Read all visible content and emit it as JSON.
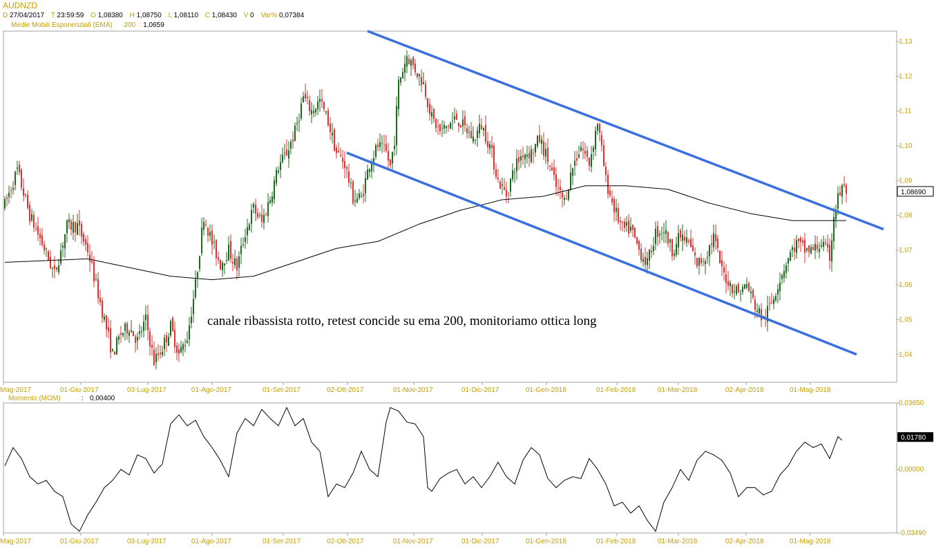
{
  "header": {
    "symbol": "AUDNZD",
    "date_key": "D",
    "date": "27/04/2017",
    "time_key": "T",
    "time": "23:59:59",
    "open_key": "O",
    "open": "1,08380",
    "high_key": "H",
    "high": "1,08750",
    "low_key": "L",
    "low": "1,08110",
    "close_key": "C",
    "close": "1,08430",
    "vol_key": "V",
    "vol": "0",
    "var_key": "Var%",
    "var": "0,07384",
    "ema_label": "Medie Mobili Esponenziali (EMA)",
    "ema_period": "200",
    "ema_sep": ":",
    "ema_value": "1,0659"
  },
  "colors": {
    "up": "#1b6b1b",
    "down": "#e03030",
    "channel": "#3a6fe0",
    "ema": "#000000",
    "axis_text": "#c8a000",
    "border": "#a0a0a0"
  },
  "annotation": "canale ribassista rotto, retest concide su ema 200, monitoriamo ottica long",
  "chart_data": [
    {
      "type": "candlestick",
      "title": "AUDNZD",
      "x_tick_labels": [
        "Mag-2017",
        "01-Giu-2017",
        "03-Lug-2017",
        "01-Ago-2017",
        "01-Set-2017",
        "02-Ott-2017",
        "01-Nov-2017",
        "01-Dic-2017",
        "01-Gen-2018",
        "01-Feb-2018",
        "01-Mar-2018",
        "02-Apr-2018",
        "01-Mag-2018"
      ],
      "y_tick_labels": [
        "1,04",
        "1,05",
        "1,06",
        "1,07",
        "1,08",
        "1,09",
        "1,10",
        "1,11",
        "1,12",
        "1,13"
      ],
      "ylim": [
        1.032,
        1.133
      ],
      "last_price_label": "1,08690",
      "last_price": 1.0869,
      "price_path": [
        [
          0,
          1.083
        ],
        [
          6,
          1.093
        ],
        [
          12,
          1.08
        ],
        [
          18,
          1.072
        ],
        [
          24,
          1.063
        ],
        [
          30,
          1.077
        ],
        [
          35,
          1.077
        ],
        [
          40,
          1.07
        ],
        [
          44,
          1.06
        ],
        [
          48,
          1.05
        ],
        [
          52,
          1.04
        ],
        [
          56,
          1.046
        ],
        [
          60,
          1.048
        ],
        [
          64,
          1.044
        ],
        [
          68,
          1.05
        ],
        [
          72,
          1.038
        ],
        [
          76,
          1.042
        ],
        [
          80,
          1.048
        ],
        [
          84,
          1.04
        ],
        [
          88,
          1.045
        ],
        [
          92,
          1.06
        ],
        [
          96,
          1.08
        ],
        [
          100,
          1.072
        ],
        [
          104,
          1.066
        ],
        [
          108,
          1.07
        ],
        [
          112,
          1.065
        ],
        [
          116,
          1.075
        ],
        [
          120,
          1.082
        ],
        [
          124,
          1.078
        ],
        [
          128,
          1.085
        ],
        [
          132,
          1.094
        ],
        [
          136,
          1.098
        ],
        [
          140,
          1.104
        ],
        [
          144,
          1.114
        ],
        [
          148,
          1.11
        ],
        [
          152,
          1.113
        ],
        [
          156,
          1.107
        ],
        [
          160,
          1.098
        ],
        [
          164,
          1.095
        ],
        [
          168,
          1.085
        ],
        [
          172,
          1.085
        ],
        [
          176,
          1.095
        ],
        [
          180,
          1.1
        ],
        [
          184,
          1.098
        ],
        [
          186,
          1.094
        ],
        [
          188,
          1.102
        ],
        [
          190,
          1.118
        ],
        [
          194,
          1.126
        ],
        [
          198,
          1.122
        ],
        [
          202,
          1.118
        ],
        [
          206,
          1.108
        ],
        [
          210,
          1.104
        ],
        [
          214,
          1.106
        ],
        [
          218,
          1.108
        ],
        [
          222,
          1.105
        ],
        [
          226,
          1.102
        ],
        [
          230,
          1.106
        ],
        [
          234,
          1.1
        ],
        [
          238,
          1.09
        ],
        [
          242,
          1.086
        ],
        [
          246,
          1.094
        ],
        [
          250,
          1.098
        ],
        [
          254,
          1.098
        ],
        [
          258,
          1.102
        ],
        [
          262,
          1.096
        ],
        [
          266,
          1.088
        ],
        [
          270,
          1.084
        ],
        [
          274,
          1.094
        ],
        [
          278,
          1.1
        ],
        [
          282,
          1.095
        ],
        [
          286,
          1.107
        ],
        [
          290,
          1.09
        ],
        [
          294,
          1.082
        ],
        [
          298,
          1.076
        ],
        [
          302,
          1.076
        ],
        [
          306,
          1.07
        ],
        [
          310,
          1.066
        ],
        [
          314,
          1.075
        ],
        [
          318,
          1.076
        ],
        [
          322,
          1.07
        ],
        [
          326,
          1.074
        ],
        [
          330,
          1.072
        ],
        [
          334,
          1.066
        ],
        [
          338,
          1.068
        ],
        [
          342,
          1.074
        ],
        [
          346,
          1.064
        ],
        [
          350,
          1.06
        ],
        [
          354,
          1.058
        ],
        [
          358,
          1.06
        ],
        [
          362,
          1.054
        ],
        [
          366,
          1.05
        ],
        [
          370,
          1.055
        ],
        [
          374,
          1.062
        ],
        [
          378,
          1.068
        ],
        [
          382,
          1.072
        ],
        [
          386,
          1.07
        ],
        [
          390,
          1.07
        ],
        [
          394,
          1.072
        ],
        [
          398,
          1.068
        ],
        [
          400,
          1.08
        ],
        [
          402,
          1.085
        ],
        [
          404,
          1.088
        ],
        [
          406,
          1.087
        ]
      ],
      "series": [
        {
          "name": "Medie Mobili Esponenziali (EMA) 200",
          "value": 1.0659,
          "points": [
            [
              0,
              1.0665
            ],
            [
              40,
              1.0675
            ],
            [
              80,
              1.0625
            ],
            [
              100,
              1.0615
            ],
            [
              120,
              1.0625
            ],
            [
              140,
              1.0665
            ],
            [
              160,
              1.0705
            ],
            [
              180,
              1.0725
            ],
            [
              200,
              1.0775
            ],
            [
              220,
              1.0815
            ],
            [
              240,
              1.0845
            ],
            [
              260,
              1.0855
            ],
            [
              280,
              1.0885
            ],
            [
              300,
              1.0885
            ],
            [
              320,
              1.0875
            ],
            [
              340,
              1.0835
            ],
            [
              360,
              1.0805
            ],
            [
              380,
              1.0785
            ],
            [
              400,
              1.0785
            ],
            [
              406,
              1.0785
            ]
          ]
        }
      ],
      "channel_lines": [
        [
          [
            175,
            1.133
          ],
          [
            424,
            1.076
          ]
        ],
        [
          [
            165,
            1.098
          ],
          [
            411,
            1.04
          ]
        ]
      ]
    },
    {
      "type": "line",
      "title": "Momento (MOM)",
      "title_value_sep": ":",
      "current_value_label": "0,00400",
      "y_tick_labels": [
        "0,03650",
        "0,00000",
        "-0,03490"
      ],
      "ylim": [
        -0.0349,
        0.0365
      ],
      "last_value_label": "0,01780",
      "last_value": 0.0178,
      "x_tick_labels": [
        "Mag-2017",
        "01-Giu-2017",
        "03-Lug-2017",
        "01-Ago-2017",
        "01-Set-2017",
        "02-Ott-2017",
        "01-Nov-2017",
        "01-Dic-2017",
        "01-Gen-2018",
        "01-Feb-2018",
        "01-Mar-2018",
        "02-Apr-2018",
        "01-Mag-2018"
      ],
      "points": [
        [
          0,
          0.002
        ],
        [
          4,
          0.012
        ],
        [
          8,
          0.006
        ],
        [
          12,
          -0.004
        ],
        [
          16,
          -0.008
        ],
        [
          20,
          -0.006
        ],
        [
          24,
          -0.012
        ],
        [
          28,
          -0.015
        ],
        [
          32,
          -0.03
        ],
        [
          36,
          -0.034
        ],
        [
          40,
          -0.025
        ],
        [
          44,
          -0.018
        ],
        [
          48,
          -0.01
        ],
        [
          52,
          -0.006
        ],
        [
          56,
          0.0
        ],
        [
          60,
          -0.003
        ],
        [
          64,
          0.008
        ],
        [
          68,
          0.006
        ],
        [
          72,
          -0.002
        ],
        [
          76,
          0.003
        ],
        [
          80,
          0.025
        ],
        [
          84,
          0.03
        ],
        [
          88,
          0.024
        ],
        [
          92,
          0.027
        ],
        [
          96,
          0.018
        ],
        [
          100,
          0.012
        ],
        [
          104,
          0.005
        ],
        [
          108,
          -0.004
        ],
        [
          112,
          0.02
        ],
        [
          116,
          0.028
        ],
        [
          120,
          0.024
        ],
        [
          124,
          0.033
        ],
        [
          128,
          0.028
        ],
        [
          132,
          0.024
        ],
        [
          136,
          0.034
        ],
        [
          140,
          0.024
        ],
        [
          144,
          0.028
        ],
        [
          148,
          0.015
        ],
        [
          152,
          0.01
        ],
        [
          156,
          -0.015
        ],
        [
          160,
          -0.008
        ],
        [
          164,
          -0.01
        ],
        [
          168,
          -0.002
        ],
        [
          172,
          0.01
        ],
        [
          176,
          0.0
        ],
        [
          180,
          -0.004
        ],
        [
          184,
          0.026
        ],
        [
          186,
          0.034
        ],
        [
          190,
          0.032
        ],
        [
          194,
          0.026
        ],
        [
          198,
          0.025
        ],
        [
          202,
          0.018
        ],
        [
          204,
          -0.01
        ],
        [
          206,
          -0.012
        ],
        [
          210,
          -0.005
        ],
        [
          214,
          -0.002
        ],
        [
          218,
          0.0
        ],
        [
          222,
          -0.008
        ],
        [
          226,
          -0.004
        ],
        [
          230,
          -0.01
        ],
        [
          234,
          -0.004
        ],
        [
          238,
          0.004
        ],
        [
          242,
          -0.004
        ],
        [
          246,
          -0.008
        ],
        [
          250,
          0.005
        ],
        [
          254,
          0.012
        ],
        [
          258,
          0.008
        ],
        [
          262,
          -0.005
        ],
        [
          266,
          -0.01
        ],
        [
          270,
          -0.006
        ],
        [
          274,
          -0.004
        ],
        [
          278,
          -0.005
        ],
        [
          282,
          0.006
        ],
        [
          286,
          0.0
        ],
        [
          290,
          -0.008
        ],
        [
          294,
          -0.02
        ],
        [
          298,
          -0.018
        ],
        [
          302,
          -0.024
        ],
        [
          306,
          -0.02
        ],
        [
          310,
          -0.028
        ],
        [
          314,
          -0.034
        ],
        [
          318,
          -0.018
        ],
        [
          322,
          -0.01
        ],
        [
          326,
          0.0
        ],
        [
          330,
          -0.006
        ],
        [
          334,
          0.005
        ],
        [
          338,
          0.01
        ],
        [
          342,
          0.008
        ],
        [
          346,
          0.005
        ],
        [
          350,
          -0.002
        ],
        [
          354,
          -0.015
        ],
        [
          358,
          -0.01
        ],
        [
          362,
          -0.01
        ],
        [
          366,
          -0.014
        ],
        [
          370,
          -0.012
        ],
        [
          374,
          -0.003
        ],
        [
          378,
          0.002
        ],
        [
          382,
          0.01
        ],
        [
          386,
          0.015
        ],
        [
          390,
          0.012
        ],
        [
          394,
          0.014
        ],
        [
          398,
          0.006
        ],
        [
          400,
          0.012
        ],
        [
          402,
          0.018
        ],
        [
          404,
          0.016
        ]
      ]
    }
  ]
}
